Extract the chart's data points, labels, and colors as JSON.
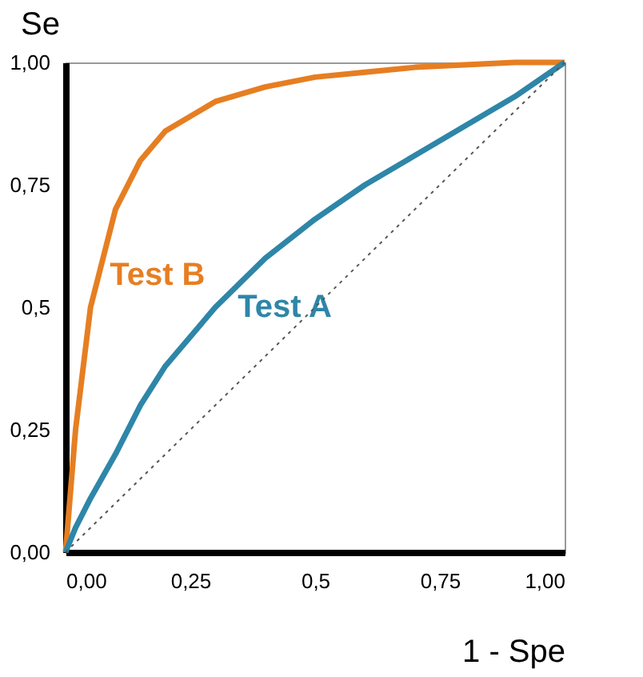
{
  "chart_data": {
    "type": "line",
    "xlabel": "1 - Spe",
    "ylabel": "Se",
    "x": [
      0,
      0.02,
      0.05,
      0.1,
      0.15,
      0.2,
      0.3,
      0.4,
      0.5,
      0.6,
      0.7,
      0.8,
      0.9,
      1
    ],
    "series": [
      {
        "name": "Test B",
        "color": "#e67e22",
        "values": [
          0,
          0.25,
          0.5,
          0.7,
          0.8,
          0.86,
          0.92,
          0.95,
          0.97,
          0.98,
          0.99,
          0.995,
          1,
          1
        ]
      },
      {
        "name": "Test A",
        "color": "#2e86a8",
        "values": [
          0,
          0.05,
          0.11,
          0.2,
          0.3,
          0.38,
          0.5,
          0.6,
          0.68,
          0.75,
          0.81,
          0.87,
          0.93,
          1
        ]
      },
      {
        "color": "#555555",
        "line_style": "dotted",
        "x": [
          0,
          1
        ],
        "values": [
          0,
          1
        ]
      }
    ],
    "xlim": [
      0,
      1
    ],
    "ylim": [
      0,
      1
    ],
    "xticks": [
      {
        "value": 0,
        "label": "0,00"
      },
      {
        "value": 0.25,
        "label": "0,25"
      },
      {
        "value": 0.5,
        "label": "0,5"
      },
      {
        "value": 0.75,
        "label": "0,75"
      },
      {
        "value": 1,
        "label": "1,00"
      }
    ],
    "yticks": [
      {
        "value": 0,
        "label": "0,00"
      },
      {
        "value": 0.25,
        "label": "0,25"
      },
      {
        "value": 0.5,
        "label": "0,5"
      },
      {
        "value": 0.75,
        "label": "0,75"
      },
      {
        "value": 1,
        "label": "1,00"
      }
    ],
    "grid": false,
    "legend": false,
    "marker": "none",
    "line_style": "solid"
  }
}
